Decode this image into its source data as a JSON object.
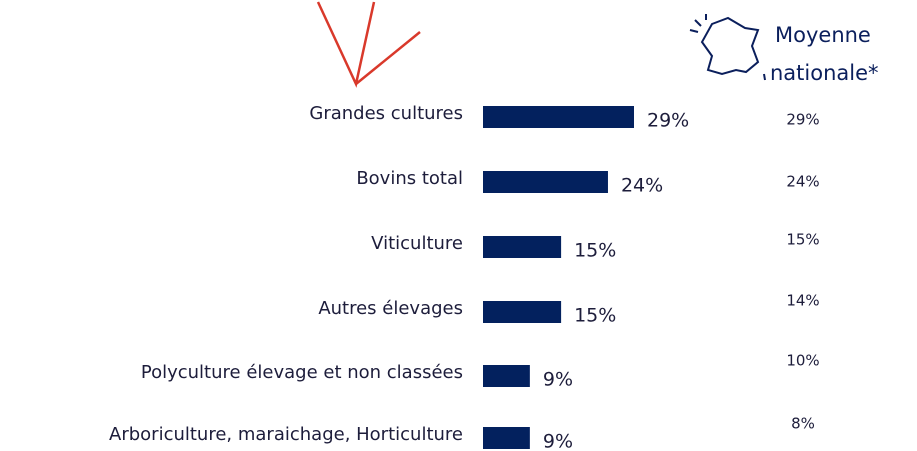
{
  "chart_data": {
    "type": "bar",
    "categories": [
      "Grandes cultures",
      "Bovins total",
      "Viticulture",
      "Autres élevages",
      "Polyculture élevage et non classées",
      "Arboriculture, maraichage, Horticulture"
    ],
    "values": [
      29,
      24,
      15,
      15,
      9,
      9
    ],
    "value_labels": [
      "29%",
      "24%",
      "15%",
      "15%",
      "9%",
      "9%"
    ],
    "color": "#03215e",
    "national": {
      "title": [
        "Moyenne",
        "nationale*"
      ],
      "values": [
        29,
        24,
        15,
        14,
        10,
        8
      ],
      "value_labels": [
        "29%",
        "24%",
        "15%",
        "14%",
        "10%",
        "8%"
      ]
    }
  }
}
